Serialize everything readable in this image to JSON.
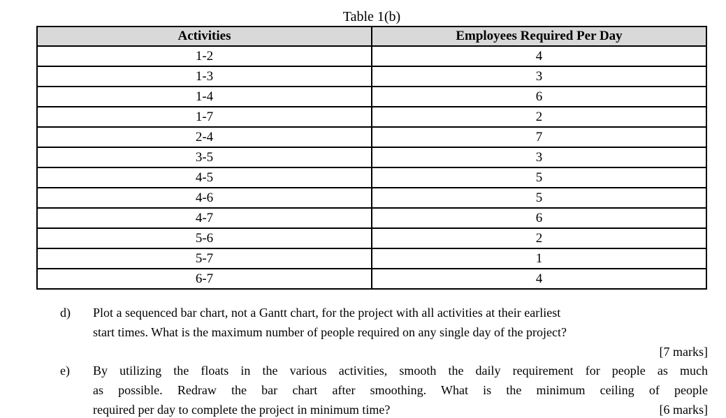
{
  "document": {
    "table_title": "Table 1(b)",
    "table": {
      "columns": [
        "Activities",
        "Employees Required Per Day"
      ],
      "rows": [
        {
          "activity": "1-2",
          "employees": "4"
        },
        {
          "activity": "1-3",
          "employees": "3"
        },
        {
          "activity": "1-4",
          "employees": "6"
        },
        {
          "activity": "1-7",
          "employees": "2"
        },
        {
          "activity": "2-4",
          "employees": "7"
        },
        {
          "activity": "3-5",
          "employees": "3"
        },
        {
          "activity": "4-5",
          "employees": "5"
        },
        {
          "activity": "4-6",
          "employees": "5"
        },
        {
          "activity": "4-7",
          "employees": "6"
        },
        {
          "activity": "5-6",
          "employees": "2"
        },
        {
          "activity": "5-7",
          "employees": "1"
        },
        {
          "activity": "6-7",
          "employees": "4"
        }
      ]
    },
    "questions": [
      {
        "label": "d)",
        "lines": [
          "Plot a sequenced bar chart, not a Gantt chart, for the project with all activities at their earliest",
          "start times. What is the maximum number of people required on any single day of the project?"
        ],
        "marks": "[7 marks]"
      },
      {
        "label": "e)",
        "lines": [
          "By utilizing the floats in the various activities, smooth the daily requirement for people as much",
          "as possible. Redraw the bar chart after smoothing. What is the minimum ceiling of people",
          "required per day to complete the project in minimum time?"
        ],
        "marks": "[6 marks]"
      }
    ]
  }
}
